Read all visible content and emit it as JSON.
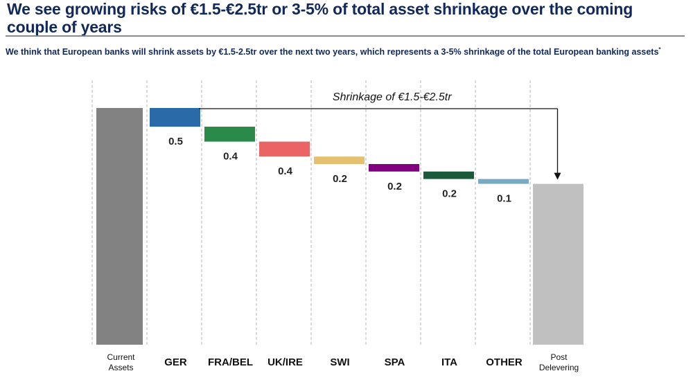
{
  "header": {
    "title": "We see growing risks of €1.5-€2.5tr or 3-5% of total asset shrinkage over the coming couple of years",
    "subtitle": "We think that European banks will shrink assets by €1.5-2.5tr over the next two years, which represents a 3-5% shrinkage of the total European banking assets",
    "subtitle_footnote_mark": "*"
  },
  "chart_data": {
    "type": "bar",
    "subtype": "waterfall",
    "title": "",
    "xlabel": "",
    "ylabel": "",
    "grid": "vertical dashed separators",
    "legend": "none",
    "categories": [
      "Current Assets",
      "GER",
      "FRA/BEL",
      "UK/IRE",
      "SWI",
      "SPA",
      "ITA",
      "OTHER",
      "Post Delevering"
    ],
    "category_label_lines": [
      [
        "Current",
        "Assets"
      ],
      [
        "GER"
      ],
      [
        "FRA/BEL"
      ],
      [
        "UK/IRE"
      ],
      [
        "SWI"
      ],
      [
        "SPA"
      ],
      [
        "ITA"
      ],
      [
        "OTHER"
      ],
      [
        "Post",
        "Delevering"
      ]
    ],
    "start_total_estimated": 6.3,
    "start_total_note": "Not printed on chart; rough visual estimate of bar height relative to labelled segments",
    "decrements": [
      {
        "name": "GER",
        "value": 0.5,
        "label": "0.5",
        "color": "#2a6aa8"
      },
      {
        "name": "FRA/BEL",
        "value": 0.4,
        "label": "0.4",
        "color": "#2a8a4a"
      },
      {
        "name": "UK/IRE",
        "value": 0.4,
        "label": "0.4",
        "color": "#ea6464"
      },
      {
        "name": "SWI",
        "value": 0.2,
        "label": "0.2",
        "color": "#e4c070"
      },
      {
        "name": "SPA",
        "value": 0.2,
        "label": "0.2",
        "color": "#800080"
      },
      {
        "name": "ITA",
        "value": 0.2,
        "label": "0.2",
        "color": "#1a5a3a"
      },
      {
        "name": "OTHER",
        "value": 0.1,
        "label": "0.1",
        "color": "#78aac4"
      }
    ],
    "total_colors": {
      "start": "#828282",
      "end": "#c0c0c0"
    },
    "annotation": {
      "text": "Shrinkage of €1.5-€2.5tr",
      "from": "GER",
      "to": "Post Delevering",
      "arrow": "down"
    },
    "units": "€tr"
  }
}
